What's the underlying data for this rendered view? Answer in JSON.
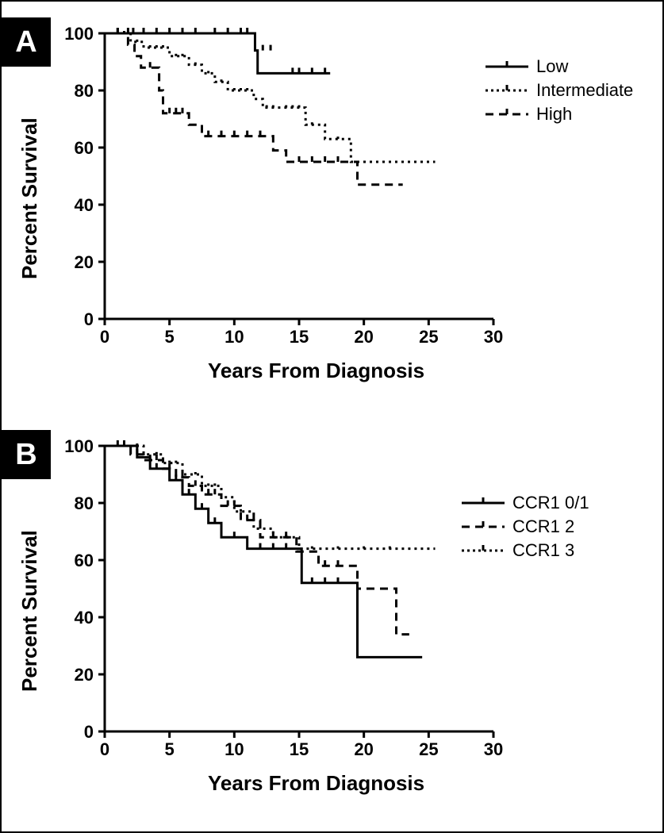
{
  "panelA": {
    "label": "A",
    "type": "kaplan-meier",
    "xlabel": "Years From Diagnosis",
    "ylabel": "Percent Survival",
    "xlim": [
      0,
      30
    ],
    "ylim": [
      0,
      100
    ],
    "xtick_step": 5,
    "ytick_step": 20,
    "axis_color": "#000000",
    "line_color": "#000000",
    "line_width": 3,
    "censor_tick_height": 7,
    "label_fontsize": 26,
    "tick_fontsize": 22,
    "legend": {
      "items": [
        {
          "label": "Low",
          "style": "solid"
        },
        {
          "label": "Intermediate",
          "style": "dot"
        },
        {
          "label": "High",
          "style": "dash"
        }
      ]
    },
    "series": [
      {
        "name": "Low",
        "style": "solid",
        "steps": [
          [
            0,
            100
          ],
          [
            11.6,
            100
          ],
          [
            11.6,
            94
          ],
          [
            11.8,
            94
          ],
          [
            11.8,
            86
          ],
          [
            17.4,
            86
          ]
        ],
        "censors": [
          [
            1.0,
            100
          ],
          [
            1.8,
            100
          ],
          [
            2.2,
            100
          ],
          [
            3.0,
            100
          ],
          [
            4.0,
            100
          ],
          [
            5.0,
            100
          ],
          [
            6.0,
            100
          ],
          [
            7.0,
            100
          ],
          [
            8.5,
            100
          ],
          [
            9.5,
            100
          ],
          [
            10.5,
            100
          ],
          [
            11.0,
            100
          ],
          [
            12.2,
            94
          ],
          [
            12.8,
            94
          ],
          [
            14.5,
            86
          ],
          [
            15.0,
            86
          ],
          [
            16.0,
            86
          ],
          [
            17.0,
            86
          ]
        ]
      },
      {
        "name": "Intermediate",
        "style": "dot",
        "steps": [
          [
            0,
            100
          ],
          [
            2.0,
            100
          ],
          [
            2.0,
            97
          ],
          [
            3.0,
            97
          ],
          [
            3.0,
            95
          ],
          [
            5.0,
            95
          ],
          [
            5.0,
            92
          ],
          [
            6.5,
            92
          ],
          [
            6.5,
            89
          ],
          [
            7.5,
            89
          ],
          [
            7.5,
            86
          ],
          [
            8.5,
            86
          ],
          [
            8.5,
            83
          ],
          [
            9.5,
            83
          ],
          [
            9.5,
            80
          ],
          [
            11.5,
            80
          ],
          [
            11.5,
            77
          ],
          [
            12.2,
            77
          ],
          [
            12.2,
            74
          ],
          [
            15.5,
            74
          ],
          [
            15.5,
            68
          ],
          [
            17.0,
            68
          ],
          [
            17.0,
            63
          ],
          [
            19.0,
            63
          ],
          [
            19.0,
            55
          ],
          [
            25.5,
            55
          ]
        ],
        "censors": [
          [
            1.5,
            100
          ],
          [
            2.5,
            97
          ],
          [
            3.5,
            95
          ],
          [
            4.0,
            95
          ],
          [
            4.5,
            95
          ],
          [
            5.5,
            92
          ],
          [
            6.0,
            92
          ],
          [
            7.0,
            89
          ],
          [
            8.0,
            86
          ],
          [
            9.0,
            83
          ],
          [
            10.0,
            80
          ],
          [
            10.5,
            80
          ],
          [
            11.0,
            80
          ],
          [
            12.5,
            74
          ],
          [
            13.0,
            74
          ],
          [
            14.0,
            74
          ],
          [
            14.5,
            74
          ],
          [
            15.0,
            74
          ],
          [
            16.0,
            68
          ],
          [
            18.0,
            63
          ]
        ]
      },
      {
        "name": "High",
        "style": "dash",
        "steps": [
          [
            0,
            100
          ],
          [
            1.8,
            100
          ],
          [
            1.8,
            96
          ],
          [
            2.3,
            96
          ],
          [
            2.3,
            92
          ],
          [
            2.8,
            92
          ],
          [
            2.8,
            88
          ],
          [
            4.2,
            88
          ],
          [
            4.2,
            80
          ],
          [
            4.5,
            80
          ],
          [
            4.5,
            72
          ],
          [
            6.5,
            72
          ],
          [
            6.5,
            68
          ],
          [
            7.5,
            68
          ],
          [
            7.5,
            64
          ],
          [
            13.0,
            64
          ],
          [
            13.0,
            59
          ],
          [
            14.0,
            59
          ],
          [
            14.0,
            55
          ],
          [
            19.5,
            55
          ],
          [
            19.5,
            47
          ],
          [
            23.0,
            47
          ]
        ],
        "censors": [
          [
            1.0,
            100
          ],
          [
            3.5,
            88
          ],
          [
            5.0,
            72
          ],
          [
            5.5,
            72
          ],
          [
            6.0,
            72
          ],
          [
            8.0,
            64
          ],
          [
            9.0,
            64
          ],
          [
            10.0,
            64
          ],
          [
            11.0,
            64
          ],
          [
            12.0,
            64
          ],
          [
            15.0,
            55
          ],
          [
            16.0,
            55
          ],
          [
            17.0,
            55
          ],
          [
            18.0,
            55
          ]
        ]
      }
    ]
  },
  "panelB": {
    "label": "B",
    "type": "kaplan-meier",
    "xlabel": "Years From Diagnosis",
    "ylabel": "Percent Survival",
    "xlim": [
      0,
      30
    ],
    "ylim": [
      0,
      100
    ],
    "xtick_step": 5,
    "ytick_step": 20,
    "axis_color": "#000000",
    "line_color": "#000000",
    "line_width": 3,
    "censor_tick_height": 7,
    "label_fontsize": 26,
    "tick_fontsize": 22,
    "legend": {
      "items": [
        {
          "label": "CCR1 0/1",
          "style": "solid"
        },
        {
          "label": "CCR1 2",
          "style": "dash"
        },
        {
          "label": "CCR1 3",
          "style": "dot"
        }
      ]
    },
    "series": [
      {
        "name": "CCR1 0/1",
        "style": "solid",
        "steps": [
          [
            0,
            100
          ],
          [
            2.5,
            100
          ],
          [
            2.5,
            96
          ],
          [
            3.5,
            96
          ],
          [
            3.5,
            92
          ],
          [
            5.0,
            92
          ],
          [
            5.0,
            88
          ],
          [
            6.0,
            88
          ],
          [
            6.0,
            83
          ],
          [
            7.0,
            83
          ],
          [
            7.0,
            78
          ],
          [
            8.0,
            78
          ],
          [
            8.0,
            73
          ],
          [
            9.0,
            73
          ],
          [
            9.0,
            68
          ],
          [
            11.0,
            68
          ],
          [
            11.0,
            64
          ],
          [
            15.2,
            64
          ],
          [
            15.2,
            52
          ],
          [
            19.5,
            52
          ],
          [
            19.5,
            26
          ],
          [
            24.5,
            26
          ]
        ],
        "censors": [
          [
            1.5,
            100
          ],
          [
            4.0,
            92
          ],
          [
            5.5,
            88
          ],
          [
            6.5,
            83
          ],
          [
            7.5,
            78
          ],
          [
            8.5,
            73
          ],
          [
            10.0,
            68
          ],
          [
            12.0,
            64
          ],
          [
            13.0,
            64
          ],
          [
            14.0,
            64
          ],
          [
            16.0,
            52
          ],
          [
            17.0,
            52
          ],
          [
            18.0,
            52
          ]
        ]
      },
      {
        "name": "CCR1 2",
        "style": "dash",
        "steps": [
          [
            0,
            100
          ],
          [
            2.0,
            100
          ],
          [
            2.0,
            97
          ],
          [
            3.0,
            97
          ],
          [
            3.0,
            95
          ],
          [
            4.5,
            95
          ],
          [
            4.5,
            92
          ],
          [
            5.5,
            92
          ],
          [
            5.5,
            89
          ],
          [
            6.5,
            89
          ],
          [
            6.5,
            86
          ],
          [
            7.5,
            86
          ],
          [
            7.5,
            83
          ],
          [
            9.0,
            83
          ],
          [
            9.0,
            79
          ],
          [
            10.5,
            79
          ],
          [
            10.5,
            74
          ],
          [
            12.0,
            74
          ],
          [
            12.0,
            68
          ],
          [
            14.8,
            68
          ],
          [
            14.8,
            63
          ],
          [
            16.5,
            63
          ],
          [
            16.5,
            58
          ],
          [
            19.5,
            58
          ],
          [
            19.5,
            50
          ],
          [
            22.5,
            50
          ],
          [
            22.5,
            34
          ],
          [
            23.5,
            34
          ]
        ],
        "censors": [
          [
            1.0,
            100
          ],
          [
            2.5,
            97
          ],
          [
            3.5,
            95
          ],
          [
            4.0,
            95
          ],
          [
            5.0,
            92
          ],
          [
            6.0,
            89
          ],
          [
            7.0,
            86
          ],
          [
            8.0,
            83
          ],
          [
            8.5,
            83
          ],
          [
            9.5,
            79
          ],
          [
            10.0,
            79
          ],
          [
            11.0,
            74
          ],
          [
            11.5,
            74
          ],
          [
            13.0,
            68
          ],
          [
            14.0,
            68
          ],
          [
            17.0,
            58
          ],
          [
            18.0,
            58
          ]
        ]
      },
      {
        "name": "CCR1 3",
        "style": "dot",
        "steps": [
          [
            0,
            100
          ],
          [
            3.0,
            100
          ],
          [
            3.0,
            97
          ],
          [
            4.5,
            97
          ],
          [
            4.5,
            94
          ],
          [
            6.0,
            94
          ],
          [
            6.0,
            90
          ],
          [
            7.5,
            90
          ],
          [
            7.5,
            86
          ],
          [
            9.0,
            86
          ],
          [
            9.0,
            82
          ],
          [
            10.0,
            82
          ],
          [
            10.0,
            77
          ],
          [
            11.5,
            77
          ],
          [
            11.5,
            71
          ],
          [
            13.0,
            71
          ],
          [
            13.0,
            68
          ],
          [
            15.0,
            68
          ],
          [
            15.0,
            64
          ],
          [
            25.5,
            64
          ]
        ],
        "censors": [
          [
            1.5,
            100
          ],
          [
            2.5,
            100
          ],
          [
            4.0,
            97
          ],
          [
            5.0,
            94
          ],
          [
            5.5,
            94
          ],
          [
            7.0,
            90
          ],
          [
            8.0,
            86
          ],
          [
            8.5,
            86
          ],
          [
            10.5,
            77
          ],
          [
            12.0,
            71
          ],
          [
            14.0,
            68
          ],
          [
            16.0,
            64
          ],
          [
            18.0,
            64
          ],
          [
            20.0,
            64
          ],
          [
            22.0,
            64
          ]
        ]
      }
    ]
  }
}
